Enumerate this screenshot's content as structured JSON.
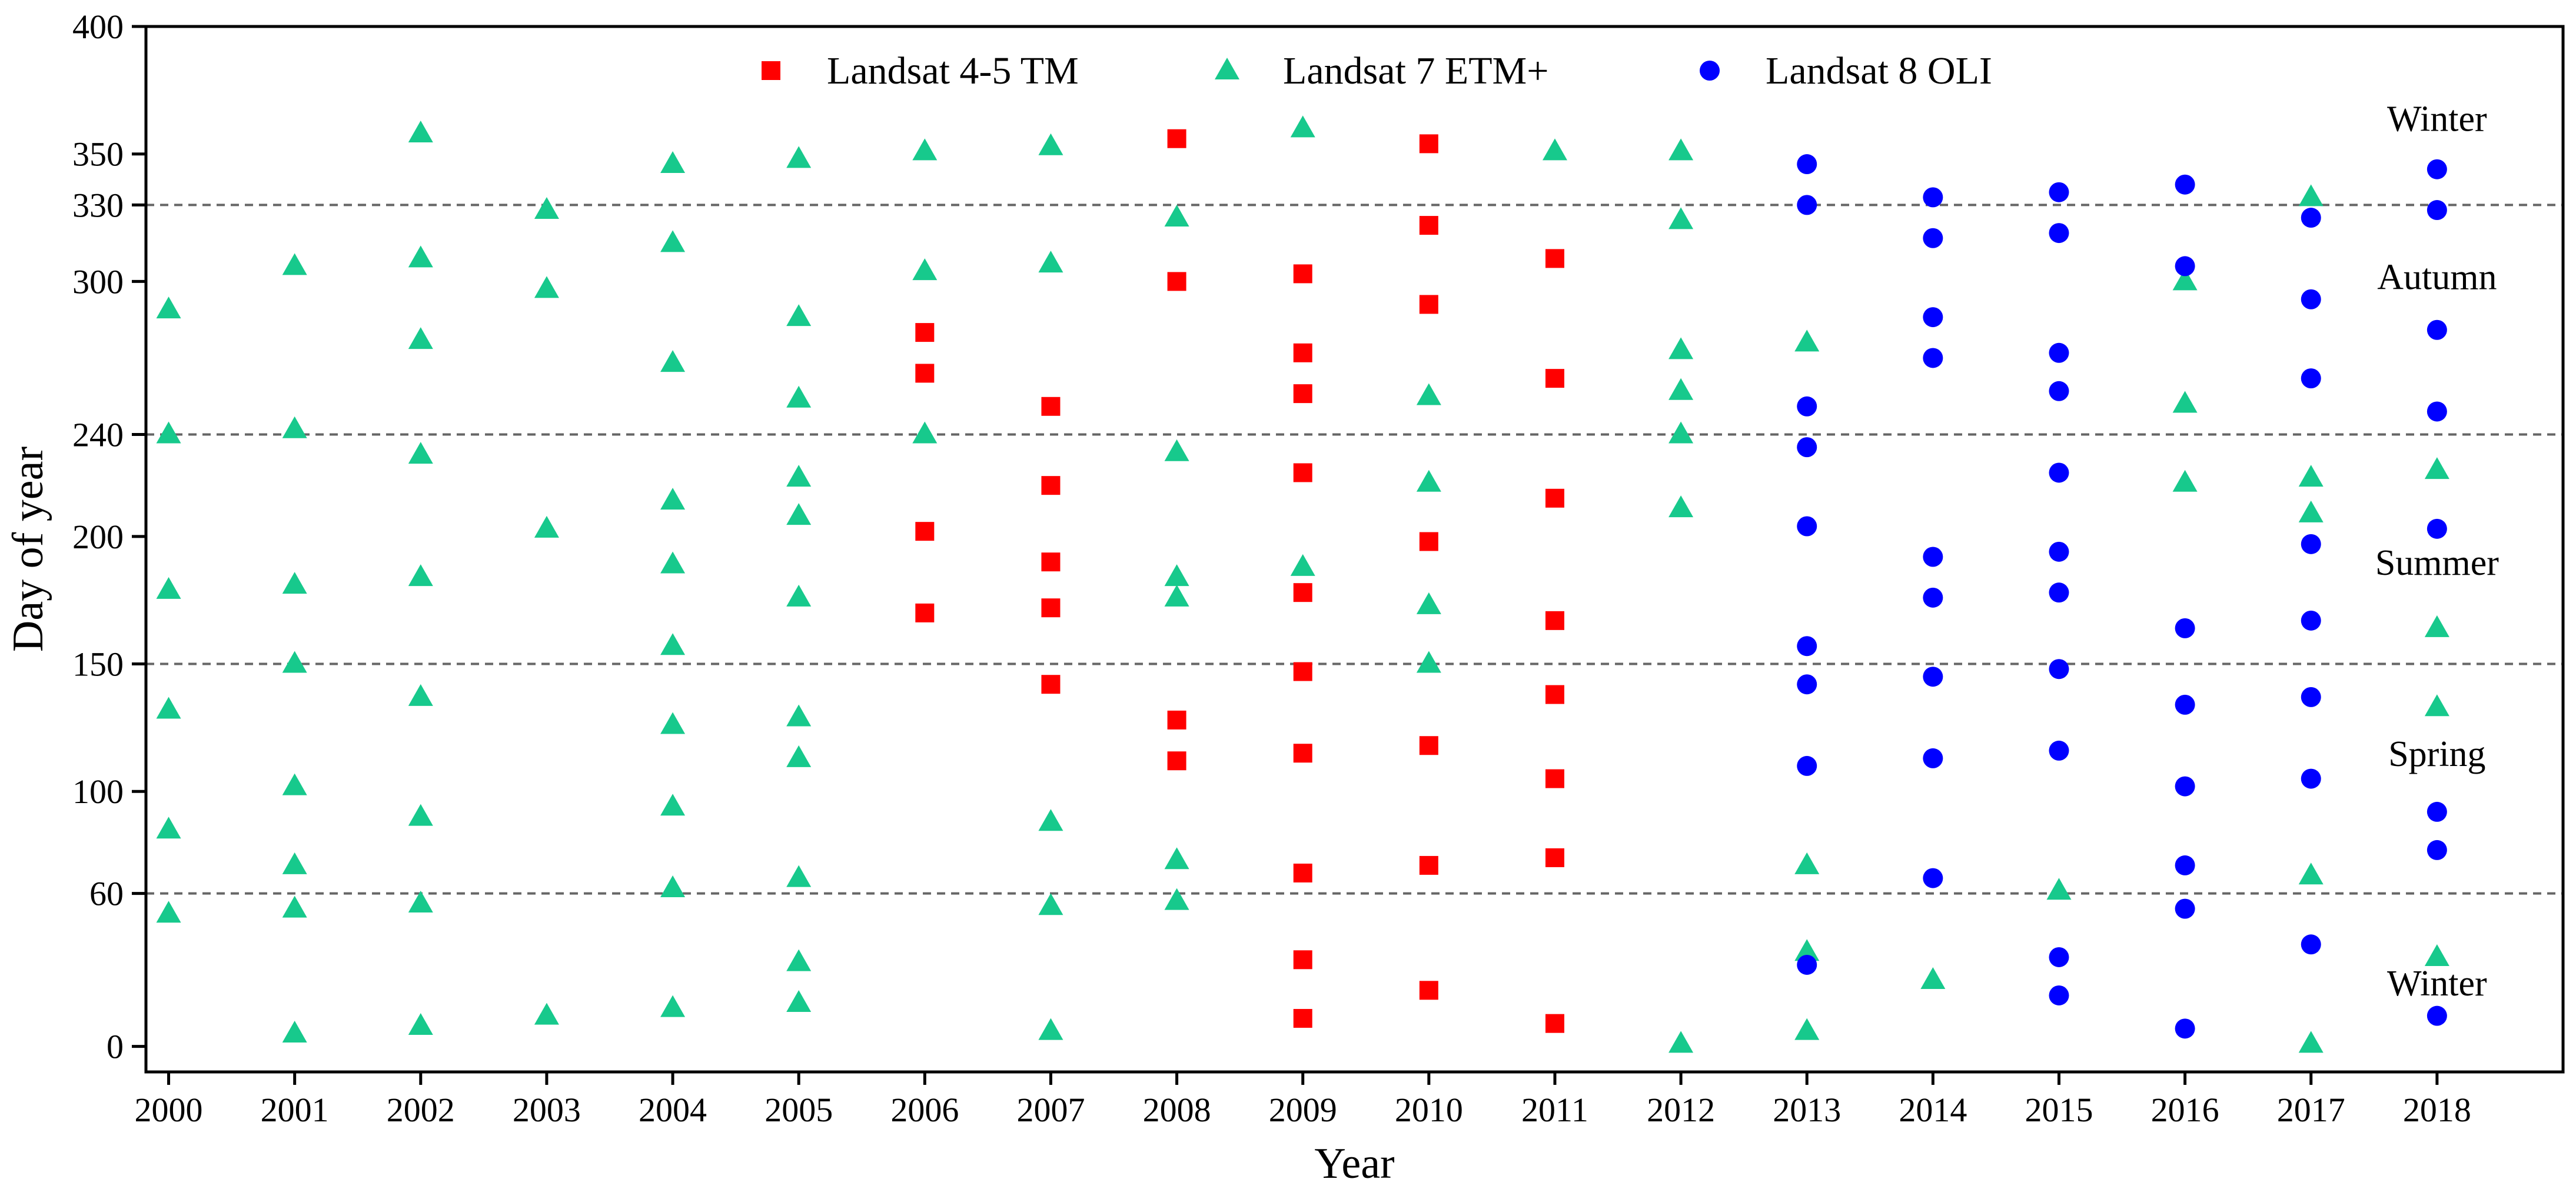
{
  "chart_data": {
    "type": "scatter",
    "title": "",
    "xlabel": "Year",
    "ylabel": "Day of year",
    "xlim": [
      1999.82,
      2019.0
    ],
    "ylim": [
      -10,
      400
    ],
    "xticks": [
      "2000",
      "2001",
      "2002",
      "2003",
      "2004",
      "2005",
      "2006",
      "2007",
      "2008",
      "2009",
      "2010",
      "2011",
      "2012",
      "2013",
      "2014",
      "2015",
      "2016",
      "2017",
      "2018"
    ],
    "yticks": [
      0,
      60,
      100,
      150,
      200,
      240,
      300,
      330,
      350,
      400
    ],
    "season_lines": [
      60,
      150,
      240,
      330
    ],
    "season_labels": [
      {
        "text": "Winter",
        "x": 2018.0,
        "y": 359
      },
      {
        "text": "Autumn",
        "x": 2018.0,
        "y": 297
      },
      {
        "text": "Summer",
        "x": 2018.0,
        "y": 185
      },
      {
        "text": "Spring",
        "x": 2018.0,
        "y": 110
      },
      {
        "text": "Winter",
        "x": 2018.0,
        "y": 20
      }
    ],
    "legend_position": "top-center",
    "series": [
      {
        "name": "Landsat 4-5 TM",
        "marker": "square",
        "color": "#ff0000",
        "points": [
          [
            2006,
            280
          ],
          [
            2006,
            264
          ],
          [
            2006,
            202
          ],
          [
            2006,
            170
          ],
          [
            2007,
            251
          ],
          [
            2007,
            220
          ],
          [
            2007,
            190
          ],
          [
            2007,
            172
          ],
          [
            2007,
            142
          ],
          [
            2008,
            356
          ],
          [
            2008,
            300
          ],
          [
            2008,
            128
          ],
          [
            2008,
            112
          ],
          [
            2009,
            303
          ],
          [
            2009,
            272
          ],
          [
            2009,
            256
          ],
          [
            2009,
            225
          ],
          [
            2009,
            178
          ],
          [
            2009,
            147
          ],
          [
            2009,
            115
          ],
          [
            2009,
            68
          ],
          [
            2009,
            34
          ],
          [
            2009,
            11
          ],
          [
            2010,
            354
          ],
          [
            2010,
            322
          ],
          [
            2010,
            291
          ],
          [
            2010,
            198
          ],
          [
            2010,
            118
          ],
          [
            2010,
            71
          ],
          [
            2010,
            22
          ],
          [
            2011,
            309
          ],
          [
            2011,
            262
          ],
          [
            2011,
            215
          ],
          [
            2011,
            167
          ],
          [
            2011,
            138
          ],
          [
            2011,
            105
          ],
          [
            2011,
            74
          ],
          [
            2011,
            9
          ]
        ]
      },
      {
        "name": "Landsat 7 ETM+",
        "marker": "triangle",
        "color": "#17c98c",
        "points": [
          [
            2000,
            289
          ],
          [
            2000,
            240
          ],
          [
            2000,
            179
          ],
          [
            2000,
            132
          ],
          [
            2000,
            85
          ],
          [
            2000,
            52
          ],
          [
            2001,
            306
          ],
          [
            2001,
            242
          ],
          [
            2001,
            181
          ],
          [
            2001,
            150
          ],
          [
            2001,
            102
          ],
          [
            2001,
            71
          ],
          [
            2001,
            54
          ],
          [
            2001,
            5
          ],
          [
            2002,
            358
          ],
          [
            2002,
            309
          ],
          [
            2002,
            277
          ],
          [
            2002,
            232
          ],
          [
            2002,
            184
          ],
          [
            2002,
            137
          ],
          [
            2002,
            90
          ],
          [
            2002,
            56
          ],
          [
            2002,
            8
          ],
          [
            2003,
            328
          ],
          [
            2003,
            297
          ],
          [
            2003,
            203
          ],
          [
            2003,
            12
          ],
          [
            2004,
            346
          ],
          [
            2004,
            315
          ],
          [
            2004,
            268
          ],
          [
            2004,
            214
          ],
          [
            2004,
            189
          ],
          [
            2004,
            157
          ],
          [
            2004,
            126
          ],
          [
            2004,
            94
          ],
          [
            2004,
            62
          ],
          [
            2004,
            15
          ],
          [
            2005,
            348
          ],
          [
            2005,
            286
          ],
          [
            2005,
            254
          ],
          [
            2005,
            223
          ],
          [
            2005,
            208
          ],
          [
            2005,
            176
          ],
          [
            2005,
            129
          ],
          [
            2005,
            113
          ],
          [
            2005,
            66
          ],
          [
            2005,
            33
          ],
          [
            2005,
            17
          ],
          [
            2006,
            351
          ],
          [
            2006,
            304
          ],
          [
            2006,
            240
          ],
          [
            2007,
            353
          ],
          [
            2007,
            307
          ],
          [
            2007,
            88
          ],
          [
            2007,
            55
          ],
          [
            2007,
            6
          ],
          [
            2008,
            325
          ],
          [
            2008,
            233
          ],
          [
            2008,
            184
          ],
          [
            2008,
            176
          ],
          [
            2008,
            73
          ],
          [
            2008,
            57
          ],
          [
            2009,
            360
          ],
          [
            2009,
            188
          ],
          [
            2010,
            255
          ],
          [
            2010,
            221
          ],
          [
            2010,
            173
          ],
          [
            2010,
            150
          ],
          [
            2011,
            351
          ],
          [
            2012,
            351
          ],
          [
            2012,
            324
          ],
          [
            2012,
            273
          ],
          [
            2012,
            257
          ],
          [
            2012,
            240
          ],
          [
            2012,
            211
          ],
          [
            2012,
            1
          ],
          [
            2013,
            276
          ],
          [
            2013,
            71
          ],
          [
            2013,
            37
          ],
          [
            2013,
            6
          ],
          [
            2014,
            26
          ],
          [
            2015,
            61
          ],
          [
            2016,
            300
          ],
          [
            2016,
            252
          ],
          [
            2016,
            221
          ],
          [
            2017,
            333
          ],
          [
            2017,
            223
          ],
          [
            2017,
            209
          ],
          [
            2017,
            67
          ],
          [
            2017,
            1
          ],
          [
            2018,
            226
          ],
          [
            2018,
            164
          ],
          [
            2018,
            133
          ],
          [
            2018,
            35
          ]
        ]
      },
      {
        "name": "Landsat 8 OLI",
        "marker": "circle",
        "color": "#0000ff",
        "points": [
          [
            2013,
            346
          ],
          [
            2013,
            330
          ],
          [
            2013,
            251
          ],
          [
            2013,
            235
          ],
          [
            2013,
            204
          ],
          [
            2013,
            157
          ],
          [
            2013,
            142
          ],
          [
            2013,
            110
          ],
          [
            2013,
            32
          ],
          [
            2014,
            333
          ],
          [
            2014,
            317
          ],
          [
            2014,
            286
          ],
          [
            2014,
            270
          ],
          [
            2014,
            192
          ],
          [
            2014,
            176
          ],
          [
            2014,
            145
          ],
          [
            2014,
            113
          ],
          [
            2014,
            66
          ],
          [
            2015,
            335
          ],
          [
            2015,
            319
          ],
          [
            2015,
            272
          ],
          [
            2015,
            257
          ],
          [
            2015,
            225
          ],
          [
            2015,
            194
          ],
          [
            2015,
            178
          ],
          [
            2015,
            148
          ],
          [
            2015,
            116
          ],
          [
            2015,
            35
          ],
          [
            2015,
            20
          ],
          [
            2016,
            338
          ],
          [
            2016,
            306
          ],
          [
            2016,
            164
          ],
          [
            2016,
            134
          ],
          [
            2016,
            102
          ],
          [
            2016,
            71
          ],
          [
            2016,
            54
          ],
          [
            2016,
            7
          ],
          [
            2017,
            325
          ],
          [
            2017,
            293
          ],
          [
            2017,
            262
          ],
          [
            2017,
            197
          ],
          [
            2017,
            167
          ],
          [
            2017,
            137
          ],
          [
            2017,
            105
          ],
          [
            2017,
            40
          ],
          [
            2018,
            344
          ],
          [
            2018,
            328
          ],
          [
            2018,
            281
          ],
          [
            2018,
            249
          ],
          [
            2018,
            203
          ],
          [
            2018,
            92
          ],
          [
            2018,
            77
          ],
          [
            2018,
            12
          ]
        ]
      }
    ]
  }
}
